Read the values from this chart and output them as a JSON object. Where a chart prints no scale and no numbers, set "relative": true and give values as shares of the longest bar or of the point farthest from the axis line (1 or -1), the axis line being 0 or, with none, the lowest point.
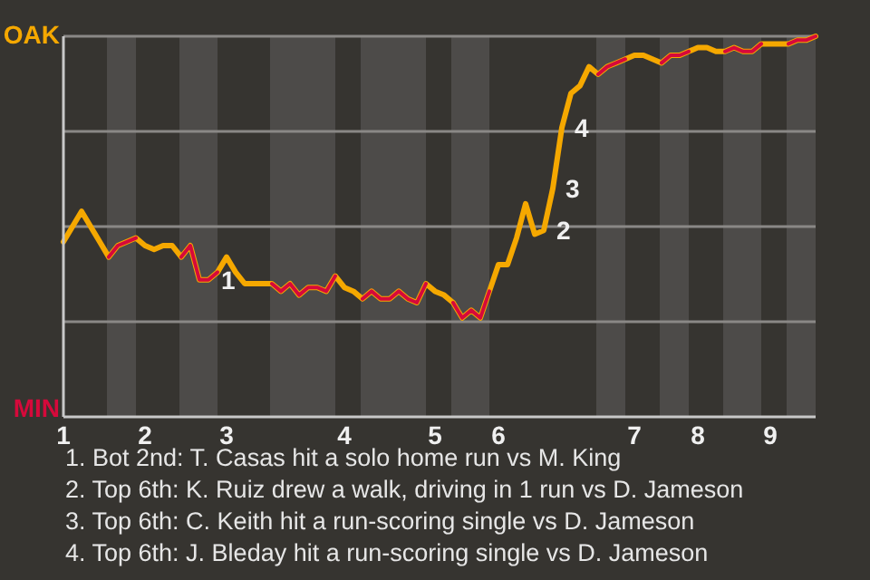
{
  "chart_data": {
    "type": "line",
    "relative": true,
    "categories": [
      "1",
      null,
      null,
      null,
      null,
      null,
      null,
      null,
      null,
      "2",
      null,
      null,
      null,
      null,
      null,
      null,
      null,
      null,
      "3",
      null,
      null,
      null,
      null,
      null,
      null,
      null,
      null,
      null,
      null,
      null,
      null,
      "4",
      null,
      null,
      null,
      null,
      null,
      null,
      null,
      null,
      null,
      "5",
      null,
      null,
      null,
      null,
      null,
      null,
      "6",
      null,
      null,
      null,
      null,
      null,
      null,
      null,
      null,
      null,
      null,
      null,
      null,
      null,
      null,
      "7",
      null,
      null,
      null,
      null,
      null,
      null,
      "8",
      null,
      null,
      null,
      null,
      null,
      null,
      null,
      "9",
      null,
      null,
      null,
      null,
      null
    ],
    "grid": "y",
    "marker": "none",
    "line_style": "solid",
    "series": [
      {
        "color": "#f5a800",
        "values": [
          0.46,
          0.5,
          0.54,
          0.5,
          0.46,
          0.42,
          0.45,
          0.46,
          0.47,
          0.45,
          0.44,
          0.45,
          0.45,
          0.42,
          0.45,
          0.36,
          0.36,
          0.38,
          0.42,
          0.38,
          0.35,
          0.35,
          0.35,
          0.35,
          0.33,
          0.35,
          0.32,
          0.34,
          0.34,
          0.33,
          0.37,
          0.34,
          0.33,
          0.31,
          0.33,
          0.31,
          0.31,
          0.33,
          0.31,
          0.3,
          0.35,
          0.33,
          0.32,
          0.3,
          0.26,
          0.28,
          0.26,
          0.33,
          0.4,
          0.4,
          0.47,
          0.56,
          0.48,
          0.49,
          0.6,
          0.76,
          0.85,
          0.87,
          0.92,
          0.9,
          0.92,
          0.93,
          0.94,
          0.95,
          0.95,
          0.94,
          0.93,
          0.95,
          0.95,
          0.96,
          0.97,
          0.97,
          0.96,
          0.96,
          0.97,
          0.96,
          0.96,
          0.98,
          0.98,
          0.98,
          0.98,
          0.99,
          0.99,
          1
        ]
      },
      {
        "color": "#d6093b",
        "values": [
          null,
          null,
          null,
          null,
          null,
          0.42,
          0.45,
          0.46,
          0.47,
          null,
          null,
          null,
          null,
          0.42,
          0.45,
          0.36,
          0.36,
          0.38,
          null,
          null,
          null,
          null,
          null,
          0.35,
          0.33,
          0.35,
          0.32,
          0.34,
          0.34,
          0.33,
          0.37,
          null,
          null,
          0.31,
          0.33,
          0.31,
          0.31,
          0.33,
          0.31,
          0.3,
          0.35,
          null,
          null,
          0.3,
          0.26,
          0.28,
          0.26,
          0.33,
          null,
          null,
          null,
          null,
          null,
          null,
          null,
          null,
          null,
          null,
          null,
          0.9,
          0.92,
          0.93,
          0.94,
          null,
          null,
          null,
          0.93,
          0.95,
          0.95,
          0.96,
          null,
          null,
          null,
          0.96,
          0.97,
          0.96,
          0.96,
          0.98,
          null,
          null,
          0.98,
          0.99,
          0.99,
          1
        ]
      }
    ],
    "annotations": [
      "OAK",
      "MIN",
      "1",
      "2",
      "3",
      "4",
      "1. Bot 2nd: T. Casas hit a solo home run vs M. King",
      "2. Top 6th: K. Ruiz drew a walk, driving in 1 run vs D. Jameson",
      "3. Top 6th: C. Keith hit a run-scoring single vs D. Jameson",
      "4. Top 6th: J. Bleday hit a run-scoring single vs D. Jameson"
    ]
  }
}
